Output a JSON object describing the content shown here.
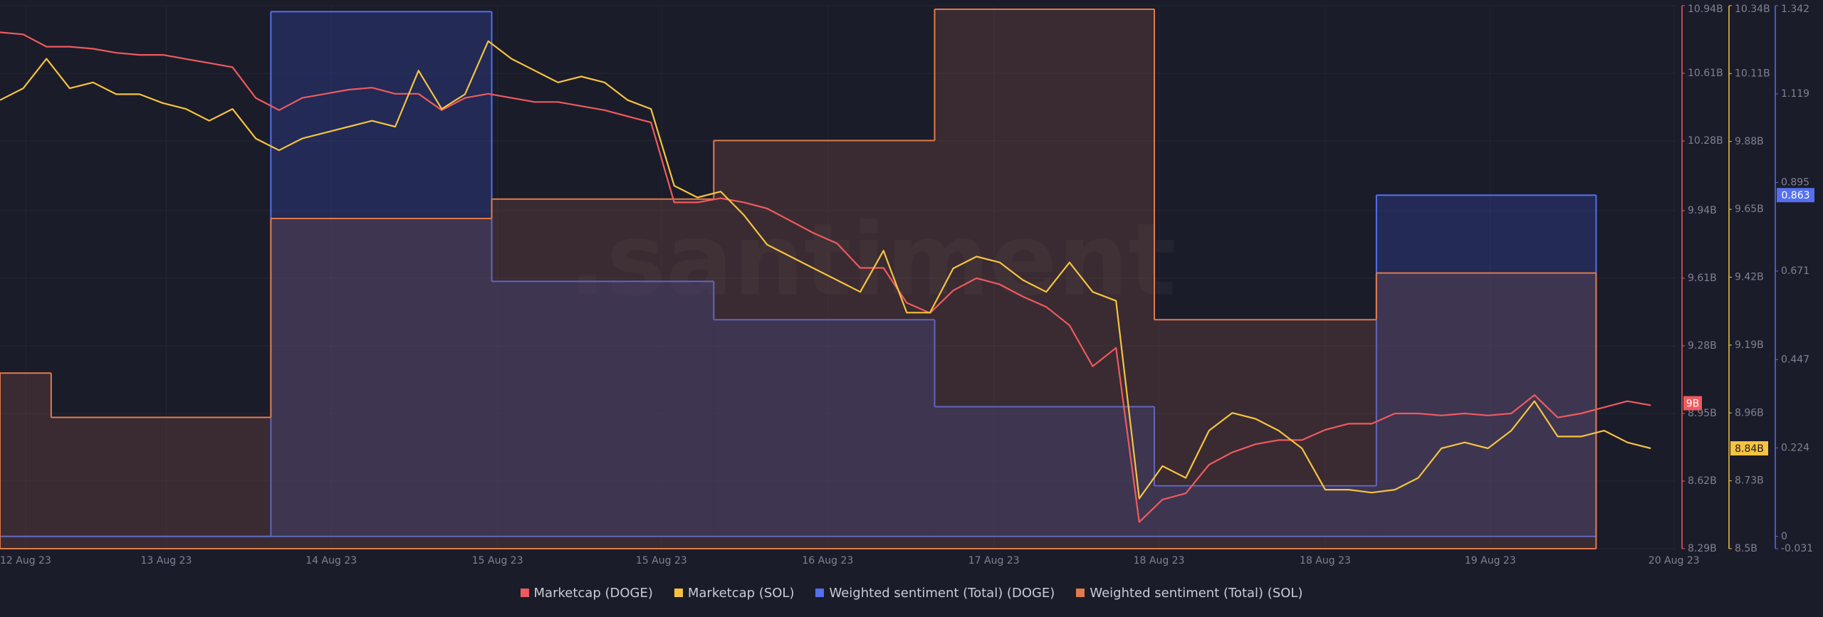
{
  "chart_data": {
    "type": "line",
    "watermark": ".santiment",
    "grid": true,
    "legend": "bottom",
    "xlim": [
      0,
      72.1
    ],
    "xticks": [
      {
        "value": 1.1,
        "label": "12 Aug 23"
      },
      {
        "value": 7.15,
        "label": "13 Aug 23"
      },
      {
        "value": 14.25,
        "label": "14 Aug 23"
      },
      {
        "value": 21.4,
        "label": "15 Aug 23"
      },
      {
        "value": 28.45,
        "label": "15 Aug 23"
      },
      {
        "value": 35.6,
        "label": "16 Aug 23"
      },
      {
        "value": 42.75,
        "label": "17 Aug 23"
      },
      {
        "value": 49.85,
        "label": "18 Aug 23"
      },
      {
        "value": 57,
        "label": "18 Aug 23"
      },
      {
        "value": 64.1,
        "label": "19 Aug 23"
      },
      {
        "value": 72,
        "label": "20 Aug 23"
      }
    ],
    "ylim": [
      8.29,
      10.94
    ],
    "yticks": [
      {
        "value": 8.29,
        "label": "8.29B"
      },
      {
        "value": 8.62,
        "label": "8.62B"
      },
      {
        "value": 8.95,
        "label": "8.95B"
      },
      {
        "value": 9.28,
        "label": "9.28B"
      },
      {
        "value": 9.61,
        "label": "9.61B"
      },
      {
        "value": 9.94,
        "label": "9.94B"
      },
      {
        "value": 10.28,
        "label": "10.28B"
      },
      {
        "value": 10.61,
        "label": "10.61B"
      },
      {
        "value": 10.94,
        "label": "10.94B"
      }
    ],
    "y2lim": [
      8.5,
      10.34
    ],
    "y2ticks": [
      {
        "value": 8.5,
        "label": "8.5B"
      },
      {
        "value": 8.73,
        "label": "8.73B"
      },
      {
        "value": 8.96,
        "label": "8.96B"
      },
      {
        "value": 9.19,
        "label": "9.19B"
      },
      {
        "value": 9.42,
        "label": "9.42B"
      },
      {
        "value": 9.65,
        "label": "9.65B"
      },
      {
        "value": 9.88,
        "label": "9.88B"
      },
      {
        "value": 10.11,
        "label": "10.11B"
      },
      {
        "value": 10.34,
        "label": "10.34B"
      }
    ],
    "y3lim": [
      -0.031,
      1.342
    ],
    "y3ticks": [
      -0.031,
      0,
      0.224,
      0.447,
      0.671,
      0.895,
      1.119,
      1.342
    ],
    "series": [
      {
        "name": "Marketcap (DOGE)",
        "color": "#ef5a5f",
        "type": "line",
        "axis": "y",
        "values": [
          10.81,
          10.8,
          10.74,
          10.74,
          10.73,
          10.71,
          10.7,
          10.7,
          10.68,
          10.66,
          10.64,
          10.49,
          10.43,
          10.49,
          10.51,
          10.53,
          10.54,
          10.51,
          10.51,
          10.43,
          10.49,
          10.51,
          10.49,
          10.47,
          10.47,
          10.45,
          10.43,
          10.4,
          10.37,
          9.98,
          9.98,
          10.0,
          9.98,
          9.95,
          9.89,
          9.83,
          9.78,
          9.66,
          9.66,
          9.49,
          9.44,
          9.55,
          9.61,
          9.58,
          9.52,
          9.47,
          9.38,
          9.18,
          9.27,
          8.42,
          8.53,
          8.56,
          8.7,
          8.76,
          8.8,
          8.82,
          8.82,
          8.87,
          8.9,
          8.9,
          8.95,
          8.95,
          8.94,
          8.95,
          8.94,
          8.95,
          9.04,
          8.93,
          8.95,
          8.98,
          9.01,
          8.99
        ],
        "last_label": {
          "value": 9,
          "label": "9B"
        }
      },
      {
        "name": "Marketcap (SOL)",
        "color": "#f5c340",
        "type": "line",
        "axis": "y2",
        "values": [
          10.02,
          10.06,
          10.16,
          10.06,
          10.08,
          10.04,
          10.04,
          10.01,
          9.99,
          9.95,
          9.99,
          9.89,
          9.85,
          9.89,
          9.91,
          9.93,
          9.95,
          9.93,
          10.12,
          9.99,
          10.04,
          10.22,
          10.16,
          10.12,
          10.08,
          10.1,
          10.08,
          10.02,
          9.99,
          9.73,
          9.69,
          9.71,
          9.63,
          9.53,
          9.49,
          9.45,
          9.41,
          9.37,
          9.51,
          9.3,
          9.3,
          9.45,
          9.49,
          9.47,
          9.41,
          9.37,
          9.47,
          9.37,
          9.34,
          8.67,
          8.78,
          8.74,
          8.9,
          8.96,
          8.94,
          8.9,
          8.84,
          8.7,
          8.7,
          8.69,
          8.7,
          8.74,
          8.84,
          8.86,
          8.84,
          8.9,
          9.0,
          8.88,
          8.88,
          8.9,
          8.86,
          8.84
        ],
        "last_label": {
          "value": 8.84,
          "label": "8.84B"
        }
      },
      {
        "name": "Weighted sentiment (Total) (DOGE)",
        "color": "#5470f0",
        "type": "step",
        "axis": "y3",
        "bins": [
          0,
          11.65,
          21.15,
          30.7,
          40.2,
          49.65,
          59.2,
          68.65
        ],
        "values": [
          0.0,
          1.327,
          0.645,
          0.548,
          0.328,
          0.128,
          0.863
        ],
        "last_label": {
          "value": 0.863,
          "label": "0.863"
        }
      },
      {
        "name": "Weighted sentiment (Total) (SOL)",
        "color": "#e07b4d",
        "type": "step",
        "axis": "y3",
        "bins": [
          0,
          2.2,
          11.65,
          21.15,
          30.7,
          40.2,
          49.65,
          59.2,
          68.65
        ],
        "values": [
          0.413,
          0.301,
          0.804,
          0.853,
          1.001,
          1.333,
          0.548,
          0.666
        ]
      }
    ]
  }
}
